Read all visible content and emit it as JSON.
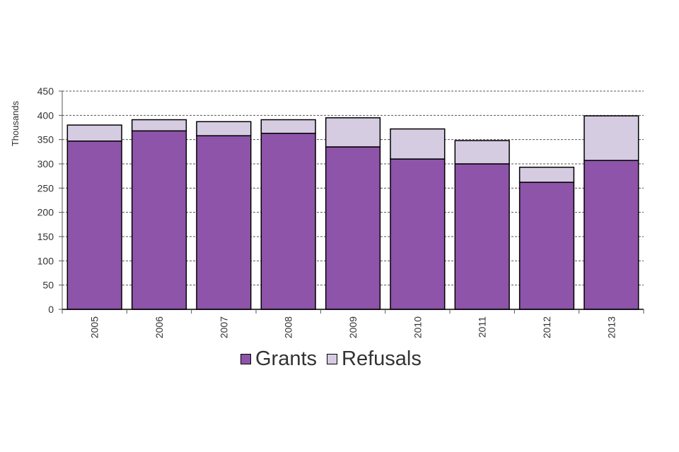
{
  "chart_data": {
    "type": "bar",
    "stacked": true,
    "title": "",
    "xlabel": "",
    "ylabel": "Thousands",
    "ylim": [
      0,
      450
    ],
    "yticks": [
      0,
      50,
      100,
      150,
      200,
      250,
      300,
      350,
      400,
      450
    ],
    "grid": true,
    "legend_position": "bottom",
    "categories": [
      "2005",
      "2006",
      "2007",
      "2008",
      "2009",
      "2010",
      "2011",
      "2012",
      "2013"
    ],
    "series": [
      {
        "name": "Grants",
        "color": "#8e54a9",
        "values": [
          347,
          368,
          358,
          363,
          335,
          310,
          300,
          262,
          307
        ]
      },
      {
        "name": "Refusals",
        "color": "#d6cce2",
        "values": [
          33,
          23,
          29,
          28,
          60,
          62,
          48,
          31,
          92
        ]
      }
    ]
  }
}
